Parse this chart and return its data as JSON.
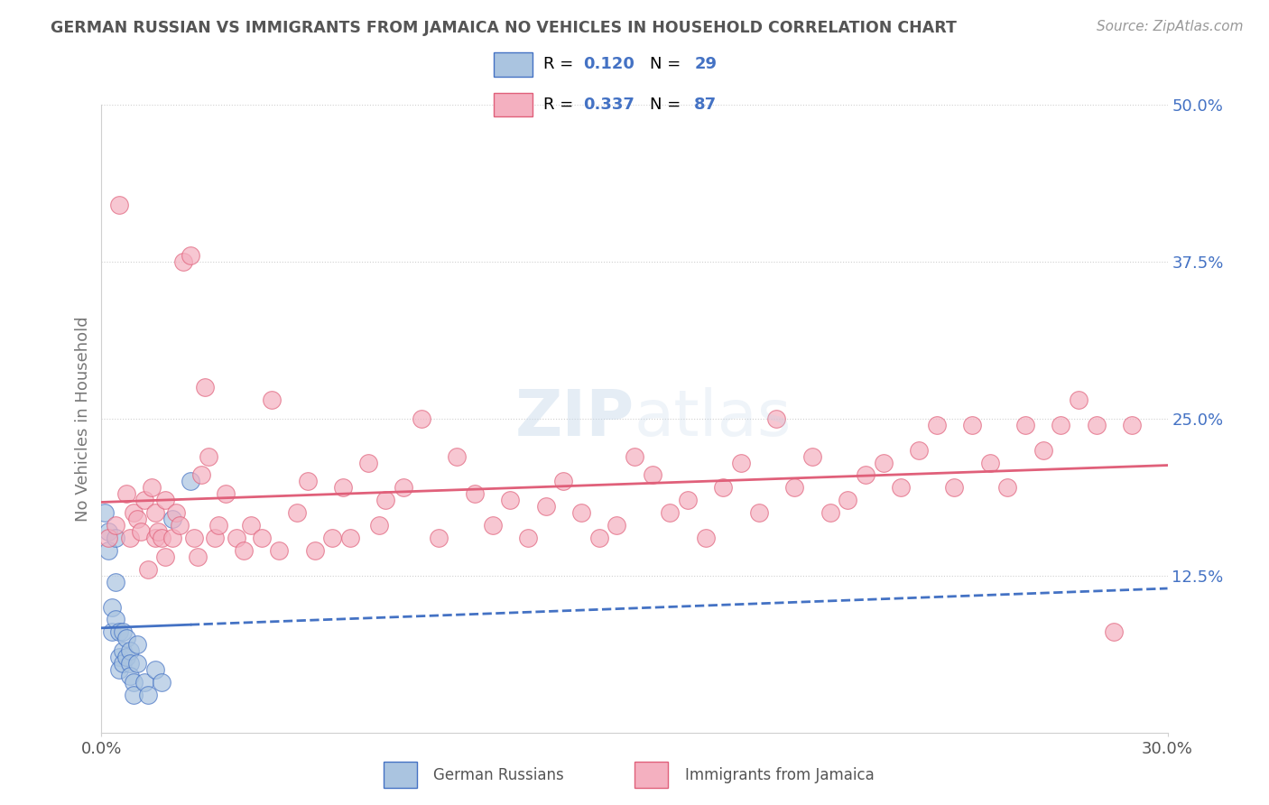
{
  "title": "GERMAN RUSSIAN VS IMMIGRANTS FROM JAMAICA NO VEHICLES IN HOUSEHOLD CORRELATION CHART",
  "source": "Source: ZipAtlas.com",
  "ylabel": "No Vehicles in Household",
  "xmin": 0.0,
  "xmax": 0.3,
  "ymin": 0.0,
  "ymax": 0.5,
  "ytick_labels": [
    "",
    "12.5%",
    "25.0%",
    "37.5%",
    "50.0%"
  ],
  "ytick_values": [
    0.0,
    0.125,
    0.25,
    0.375,
    0.5
  ],
  "xtick_labels": [
    "0.0%",
    "30.0%"
  ],
  "xtick_values": [
    0.0,
    0.3
  ],
  "blue_color": "#aac4e0",
  "pink_color": "#f4b0c0",
  "blue_line_color": "#4472c4",
  "pink_line_color": "#e0607a",
  "blue_tick_color": "#4472c4",
  "watermark_color": "#c8d8e8",
  "grid_color": "#d0d0d0",
  "title_color": "#555555",
  "source_color": "#999999",
  "ylabel_color": "#777777",
  "legend_r1": "0.120",
  "legend_n1": "29",
  "legend_r2": "0.337",
  "legend_n2": "87",
  "german_russian_x": [
    0.001,
    0.002,
    0.002,
    0.003,
    0.003,
    0.004,
    0.004,
    0.004,
    0.005,
    0.005,
    0.005,
    0.006,
    0.006,
    0.006,
    0.007,
    0.007,
    0.008,
    0.008,
    0.008,
    0.009,
    0.009,
    0.01,
    0.01,
    0.012,
    0.013,
    0.015,
    0.017,
    0.02,
    0.025
  ],
  "german_russian_y": [
    0.175,
    0.16,
    0.145,
    0.1,
    0.08,
    0.155,
    0.12,
    0.09,
    0.08,
    0.06,
    0.05,
    0.065,
    0.08,
    0.055,
    0.075,
    0.06,
    0.065,
    0.055,
    0.045,
    0.04,
    0.03,
    0.07,
    0.055,
    0.04,
    0.03,
    0.05,
    0.04,
    0.17,
    0.2
  ],
  "jamaica_x": [
    0.002,
    0.004,
    0.005,
    0.007,
    0.008,
    0.009,
    0.01,
    0.011,
    0.012,
    0.013,
    0.014,
    0.015,
    0.015,
    0.016,
    0.017,
    0.018,
    0.018,
    0.02,
    0.021,
    0.022,
    0.023,
    0.025,
    0.026,
    0.027,
    0.028,
    0.029,
    0.03,
    0.032,
    0.033,
    0.035,
    0.038,
    0.04,
    0.042,
    0.045,
    0.048,
    0.05,
    0.055,
    0.058,
    0.06,
    0.065,
    0.068,
    0.07,
    0.075,
    0.078,
    0.08,
    0.085,
    0.09,
    0.095,
    0.1,
    0.105,
    0.11,
    0.115,
    0.12,
    0.125,
    0.13,
    0.135,
    0.14,
    0.145,
    0.15,
    0.155,
    0.16,
    0.165,
    0.17,
    0.175,
    0.18,
    0.185,
    0.19,
    0.195,
    0.2,
    0.205,
    0.21,
    0.215,
    0.22,
    0.225,
    0.23,
    0.235,
    0.24,
    0.245,
    0.25,
    0.255,
    0.26,
    0.265,
    0.27,
    0.275,
    0.28,
    0.285,
    0.29
  ],
  "jamaica_y": [
    0.155,
    0.165,
    0.42,
    0.19,
    0.155,
    0.175,
    0.17,
    0.16,
    0.185,
    0.13,
    0.195,
    0.175,
    0.155,
    0.16,
    0.155,
    0.185,
    0.14,
    0.155,
    0.175,
    0.165,
    0.375,
    0.38,
    0.155,
    0.14,
    0.205,
    0.275,
    0.22,
    0.155,
    0.165,
    0.19,
    0.155,
    0.145,
    0.165,
    0.155,
    0.265,
    0.145,
    0.175,
    0.2,
    0.145,
    0.155,
    0.195,
    0.155,
    0.215,
    0.165,
    0.185,
    0.195,
    0.25,
    0.155,
    0.22,
    0.19,
    0.165,
    0.185,
    0.155,
    0.18,
    0.2,
    0.175,
    0.155,
    0.165,
    0.22,
    0.205,
    0.175,
    0.185,
    0.155,
    0.195,
    0.215,
    0.175,
    0.25,
    0.195,
    0.22,
    0.175,
    0.185,
    0.205,
    0.215,
    0.195,
    0.225,
    0.245,
    0.195,
    0.245,
    0.215,
    0.195,
    0.245,
    0.225,
    0.245,
    0.265,
    0.245,
    0.08,
    0.245
  ]
}
